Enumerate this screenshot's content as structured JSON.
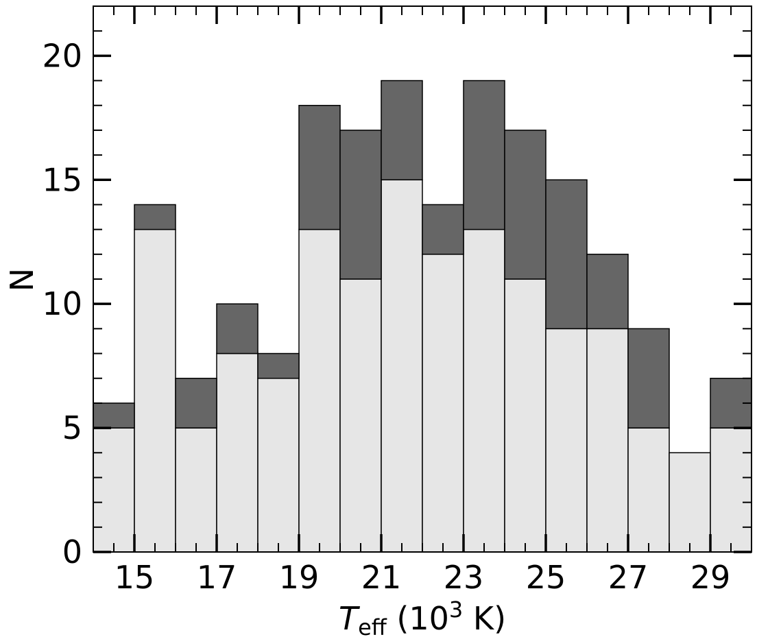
{
  "chart_data": {
    "type": "bar",
    "stacked": true,
    "bin_edges": [
      14,
      15,
      16,
      17,
      18,
      19,
      20,
      21,
      22,
      23,
      24,
      25,
      26,
      27,
      28,
      29,
      30
    ],
    "series": [
      {
        "color": "#e6e6e6",
        "values": [
          5,
          13,
          5,
          8,
          7,
          13,
          11,
          15,
          12,
          13,
          11,
          9,
          9,
          5,
          4,
          5
        ]
      },
      {
        "color": "#666666",
        "values": [
          1,
          1,
          2,
          2,
          1,
          5,
          6,
          4,
          2,
          6,
          6,
          6,
          3,
          4,
          0,
          2
        ]
      }
    ],
    "totals": [
      6,
      14,
      7,
      10,
      8,
      18,
      17,
      19,
      14,
      19,
      17,
      15,
      12,
      9,
      4,
      7
    ],
    "xlabel": {
      "symbol": "T",
      "subscript": "eff",
      "open": " (10",
      "superscript": "3",
      "unit": " K)"
    },
    "ylabel": "N",
    "xlim": [
      14,
      30
    ],
    "ylim": [
      0,
      22
    ],
    "x_ticks": [
      15,
      17,
      19,
      21,
      23,
      25,
      27,
      29
    ],
    "x_tick_labels": [
      "15",
      "17",
      "19",
      "21",
      "23",
      "25",
      "27",
      "29"
    ],
    "y_ticks": [
      0,
      5,
      10,
      15,
      20
    ],
    "y_tick_labels": [
      "0",
      "5",
      "10",
      "15",
      "20"
    ],
    "x_minor_step": 0.5,
    "y_minor_step": 1,
    "grid": false,
    "bar_edge_color": "#000000"
  }
}
